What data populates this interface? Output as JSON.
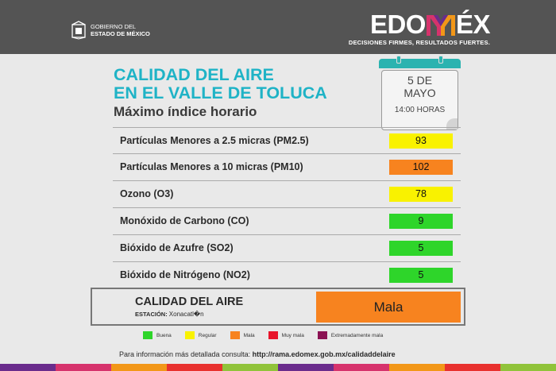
{
  "header": {
    "gob_line1": "GOBIERNO DEL",
    "gob_line2": "ESTADO DE MÉXICO",
    "brand_left": "EDO",
    "brand_right": "ÉX",
    "tagline": "DECISIONES FIRMES, RESULTADOS FUERTES."
  },
  "title_line1": "CALIDAD DEL AIRE",
  "title_line2": "EN EL VALLE DE TOLUCA",
  "subtitle": "Máximo índice horario",
  "calendar": {
    "day": "5 DE",
    "month": "MAYO",
    "time": "14:00 HORAS"
  },
  "pollutants": [
    {
      "label": "Partículas Menores a 2.5 micras (PM2.5)",
      "value": "93",
      "color": "#f9f200"
    },
    {
      "label": "Partículas Menores a 10 micras (PM10)",
      "value": "102",
      "color": "#f7831f"
    },
    {
      "label": "Ozono (O3)",
      "value": "78",
      "color": "#f9f200"
    },
    {
      "label": "Monóxido de Carbono (CO)",
      "value": "9",
      "color": "#2ed52a"
    },
    {
      "label": "Bióxido de Azufre (SO2)",
      "value": "5",
      "color": "#2ed52a"
    },
    {
      "label": "Bióxido de Nitrógeno (NO2)",
      "value": "5",
      "color": "#2ed52a"
    }
  ],
  "summary": {
    "title": "CALIDAD DEL AIRE",
    "station_label": "ESTACIÓN:",
    "station_value": "Xonacatl�n",
    "quality": "Mala",
    "color": "#f7831f"
  },
  "legend": [
    {
      "label": "Buena",
      "color": "#2ed52a"
    },
    {
      "label": "Regular",
      "color": "#f9f200"
    },
    {
      "label": "Mala",
      "color": "#f7831f"
    },
    {
      "label": "Muy mala",
      "color": "#e8142a"
    },
    {
      "label": "Extremadamente mala",
      "color": "#8b1253"
    }
  ],
  "footer": {
    "text": "Para información más detallada consulta: ",
    "url": "http://rama.edomex.gob.mx/calidaddelaire"
  },
  "stripe_colors": [
    "#6a2c8c",
    "#d6336c",
    "#f29718",
    "#e8312e",
    "#90c33a",
    "#6a2c8c",
    "#d6336c",
    "#f29718",
    "#e8312e",
    "#90c33a"
  ]
}
